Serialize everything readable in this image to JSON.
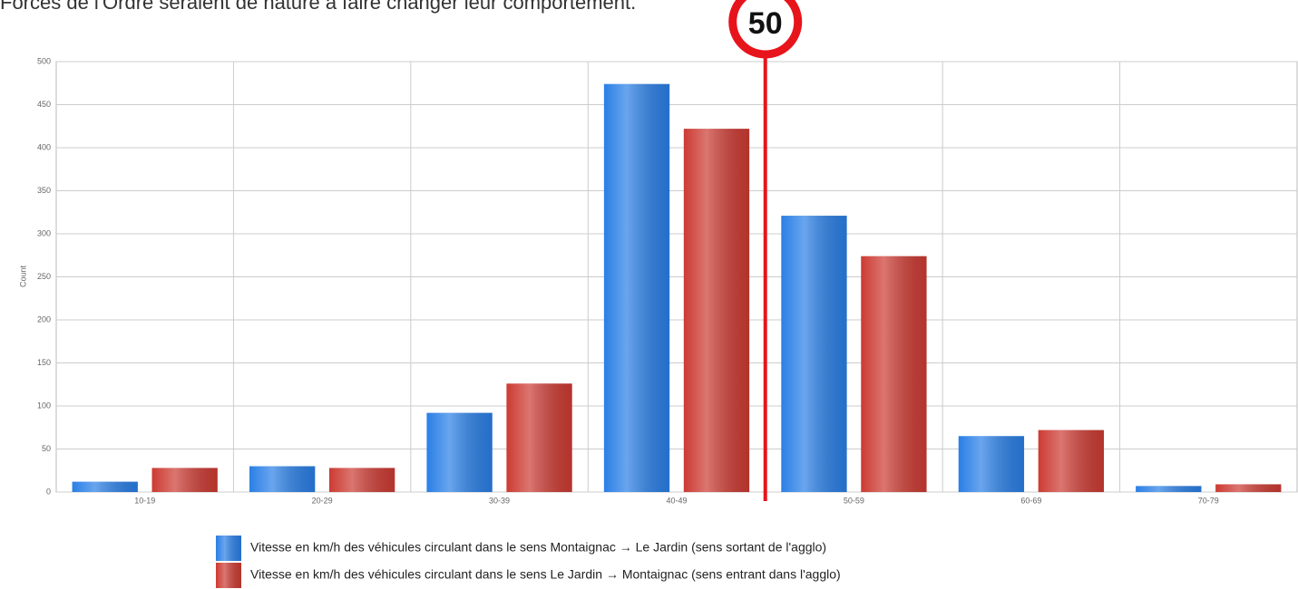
{
  "caption": "Forces de l'Ordre seraient de nature à faire changer leur comportement.",
  "chart_data": {
    "type": "bar",
    "ylabel": "Count",
    "categories": [
      "10-19",
      "20-29",
      "30-39",
      "40-49",
      "50-59",
      "60-69",
      "70-79"
    ],
    "series": [
      {
        "name": "Vitesse en km/h des véhicules circulant dans le sens Montaignac → Le Jardin (sens sortant de l'agglo)",
        "color": "#2a7fe6",
        "values": [
          12,
          30,
          92,
          474,
          321,
          65,
          7
        ]
      },
      {
        "name": "Vitesse en km/h des véhicules circulant dans le sens Le Jardin → Montaignac (sens entrant dans l'agglo)",
        "color": "#cc3b33",
        "values": [
          28,
          28,
          126,
          422,
          274,
          72,
          9
        ]
      }
    ],
    "ylim": [
      0,
      500
    ],
    "yticks": [
      0,
      50,
      100,
      150,
      200,
      250,
      300,
      350,
      400,
      450,
      500
    ],
    "grid": true,
    "annotations": [
      {
        "label": "50",
        "color": "#e8141b"
      }
    ]
  }
}
